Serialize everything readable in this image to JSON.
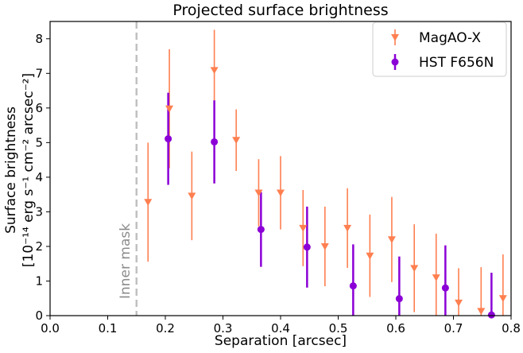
{
  "chart_data": {
    "type": "scatter",
    "title": "Projected surface brightness",
    "xlabel": "Separation [arcsec]",
    "ylabel_line1": "Surface brightness",
    "ylabel_line2": "[10⁻¹⁴ erg s⁻¹ cm⁻² arcsec⁻²]",
    "xlim": [
      0.0,
      0.8
    ],
    "ylim": [
      0,
      8.5
    ],
    "xticks": [
      "0.0",
      "0.1",
      "0.2",
      "0.3",
      "0.4",
      "0.5",
      "0.6",
      "0.7",
      "0.8"
    ],
    "yticks": [
      "0",
      "1",
      "2",
      "3",
      "4",
      "5",
      "6",
      "7",
      "8"
    ],
    "grid": false,
    "legend_position": "upper-right",
    "annotation": {
      "text": "Inner mask",
      "x": 0.15
    },
    "series": [
      {
        "name": "MagAO-X",
        "color": "#ff7f50",
        "marker": "triangle-down",
        "points": [
          {
            "x": 0.17,
            "y": 3.28,
            "yerr": 1.72
          },
          {
            "x": 0.207,
            "y": 5.98,
            "yerr": 1.72
          },
          {
            "x": 0.246,
            "y": 3.46,
            "yerr": 1.28
          },
          {
            "x": 0.285,
            "y": 7.09,
            "yerr": 1.17
          },
          {
            "x": 0.323,
            "y": 5.07,
            "yerr": 0.89
          },
          {
            "x": 0.362,
            "y": 3.55,
            "yerr": 0.97
          },
          {
            "x": 0.4,
            "y": 3.55,
            "yerr": 1.06
          },
          {
            "x": 0.439,
            "y": 2.53,
            "yerr": 1.1
          },
          {
            "x": 0.477,
            "y": 2.0,
            "yerr": 1.15
          },
          {
            "x": 0.516,
            "y": 2.53,
            "yerr": 1.15
          },
          {
            "x": 0.555,
            "y": 1.73,
            "yerr": 1.19
          },
          {
            "x": 0.593,
            "y": 2.2,
            "yerr": 1.23
          },
          {
            "x": 0.632,
            "y": 1.37,
            "yerr": 1.27
          },
          {
            "x": 0.67,
            "y": 1.1,
            "yerr": 1.27
          },
          {
            "x": 0.709,
            "y": 0.37,
            "yerr": 1.0
          },
          {
            "x": 0.748,
            "y": 0.13,
            "yerr": 1.27
          },
          {
            "x": 0.786,
            "y": 0.5,
            "yerr": 1.27
          }
        ]
      },
      {
        "name": "HST F656N",
        "color": "#8b00d6",
        "marker": "circle",
        "points": [
          {
            "x": 0.205,
            "y": 5.11,
            "yerr": 1.33
          },
          {
            "x": 0.285,
            "y": 5.02,
            "yerr": 1.2
          },
          {
            "x": 0.366,
            "y": 2.49,
            "yerr": 1.08
          },
          {
            "x": 0.446,
            "y": 1.98,
            "yerr": 1.17
          },
          {
            "x": 0.526,
            "y": 0.86,
            "yerr": 1.2
          },
          {
            "x": 0.606,
            "y": 0.49,
            "yerr": 1.22
          },
          {
            "x": 0.686,
            "y": 0.8,
            "yerr": 1.23
          },
          {
            "x": 0.766,
            "y": 0.02,
            "yerr": 1.22
          }
        ]
      }
    ]
  }
}
